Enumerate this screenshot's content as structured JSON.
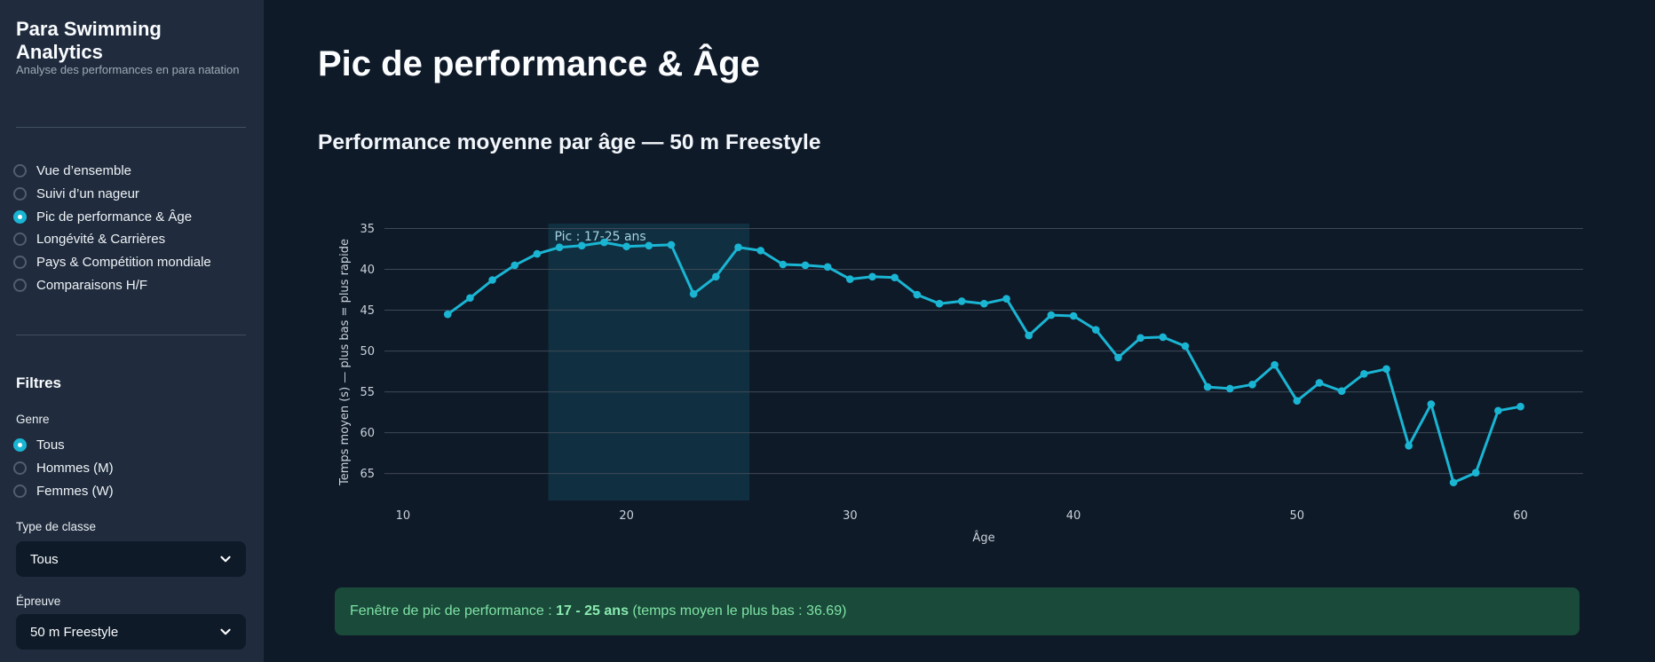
{
  "sidebar": {
    "title": "Para Swimming Analytics",
    "subtitle": "Analyse des performances en para natation",
    "nav": {
      "items": [
        "Vue d’ensemble",
        "Suivi d’un nageur",
        "Pic de performance & Âge",
        "Longévité & Carrières",
        "Pays & Compétition mondiale",
        "Comparaisons H/F"
      ],
      "selected": "Pic de performance & Âge"
    },
    "filters_title": "Filtres",
    "genre": {
      "label": "Genre",
      "options": [
        "Tous",
        "Hommes (M)",
        "Femmes (W)"
      ],
      "selected": "Tous"
    },
    "class_type": {
      "label": "Type de classe",
      "value": "Tous"
    },
    "event": {
      "label": "Épreuve",
      "value": "50 m Freestyle"
    }
  },
  "main": {
    "title": "Pic de performance & Âge",
    "subtitle": "Performance moyenne par âge — 50 m Freestyle",
    "callout": {
      "prefix": "Fenêtre de pic de performance : ",
      "highlight": "17 - 25 ans",
      "suffix": " (temps moyen le plus bas : 36.69)"
    }
  },
  "chart_data": {
    "type": "line",
    "title": "",
    "xlabel": "Âge",
    "ylabel": "Temps moyen (s) — plus bas = plus rapide",
    "x": [
      12,
      13,
      14,
      15,
      16,
      17,
      18,
      19,
      20,
      21,
      22,
      23,
      24,
      25,
      26,
      27,
      28,
      29,
      30,
      31,
      32,
      33,
      34,
      35,
      36,
      37,
      38,
      39,
      40,
      41,
      42,
      43,
      44,
      45,
      46,
      47,
      48,
      49,
      50,
      51,
      52,
      53,
      54,
      55,
      56,
      57,
      58,
      59,
      60
    ],
    "values": [
      45.5,
      43.5,
      41.3,
      39.5,
      38.1,
      37.3,
      37.1,
      36.69,
      37.2,
      37.1,
      37.0,
      43.0,
      40.9,
      37.3,
      37.7,
      39.4,
      39.5,
      39.7,
      41.2,
      40.9,
      41.0,
      43.1,
      44.2,
      43.9,
      44.2,
      43.6,
      48.1,
      45.6,
      45.7,
      47.4,
      50.8,
      48.4,
      48.3,
      49.4,
      54.4,
      54.6,
      54.1,
      51.7,
      56.1,
      53.9,
      54.9,
      52.8,
      52.2,
      61.6,
      56.5,
      66.1,
      64.9,
      57.3,
      56.8
    ],
    "xticks": [
      10,
      20,
      30,
      40,
      50,
      60
    ],
    "yticks": [
      35,
      40,
      45,
      50,
      55,
      60,
      65
    ],
    "xlim": [
      9.17,
      62.8
    ],
    "ylim_top": 34.4,
    "ylim_bottom": 68.3,
    "y_axis_inverted": true,
    "grid": "horizontal-only",
    "legend": "none",
    "peak_band": {
      "x0": 16.5,
      "x1": 25.5,
      "label": "Pic : 17-25 ans"
    },
    "min_avg_time": 36.69,
    "line_color": "#1ab5d3",
    "band_color": "rgba(26,181,211,0.14)",
    "grid_color": "#3e4855"
  }
}
